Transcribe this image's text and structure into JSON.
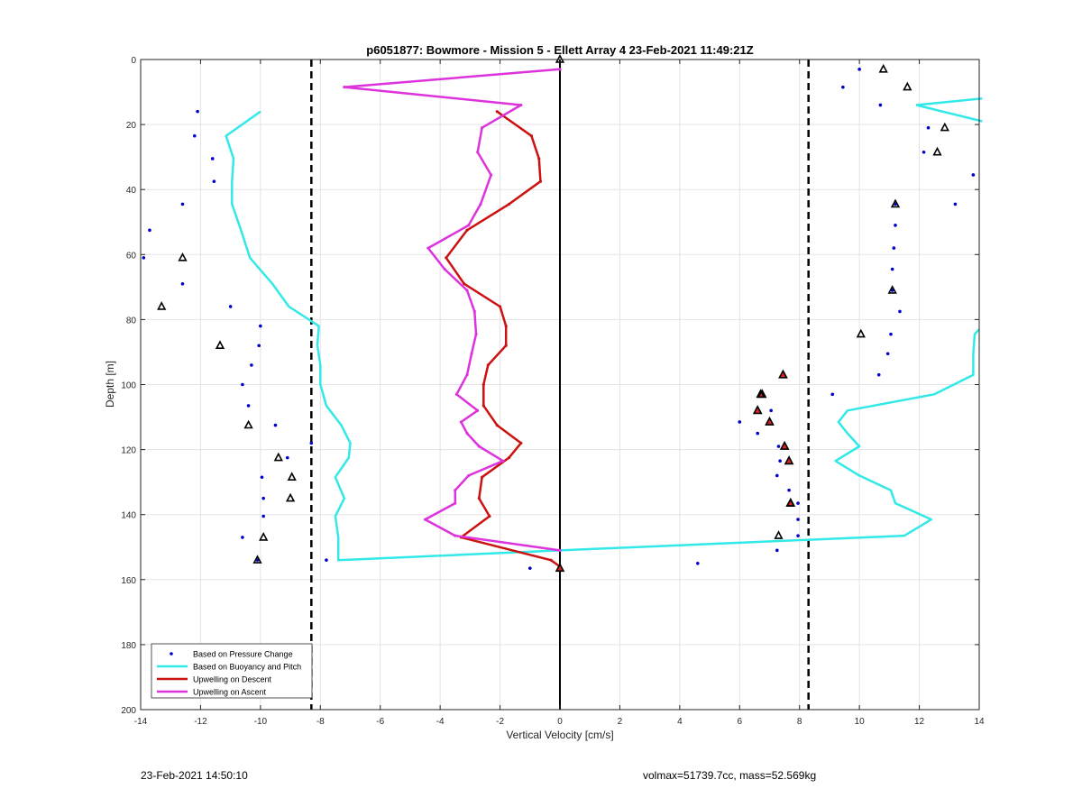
{
  "chart_data": {
    "type": "line",
    "title": "p6051877: Bowmore - Mission 5 - Ellett Array 4 23-Feb-2021 11:49:21Z",
    "xlabel": "Vertical Velocity [cm/s]",
    "ylabel": "Depth [m]",
    "xlim": [
      -14,
      14
    ],
    "ylim": [
      0,
      200
    ],
    "y_reversed": true,
    "grid": true,
    "legend_position": "bottom-left",
    "x_ticks": [
      "-14",
      "-12",
      "-10",
      "-8",
      "-6",
      "-4",
      "-2",
      "0",
      "2",
      "4",
      "6",
      "8",
      "10",
      "12",
      "14"
    ],
    "y_ticks": [
      "0",
      "20",
      "40",
      "60",
      "80",
      "100",
      "120",
      "140",
      "160",
      "180",
      "200"
    ],
    "reference_lines": {
      "zero_x": 0,
      "dashed_x": [
        -8.3,
        8.3
      ]
    },
    "series": [
      {
        "name": "Based on Pressure Change",
        "style": "dots",
        "color": "#0000cc",
        "points": [
          [
            -12.1,
            16
          ],
          [
            -12.2,
            23.5
          ],
          [
            -11.6,
            30.5
          ],
          [
            -11.55,
            37.5
          ],
          [
            -12.6,
            44.5
          ],
          [
            -13.7,
            52.5
          ],
          [
            -13.9,
            61
          ],
          [
            -12.6,
            69
          ],
          [
            -11,
            76
          ],
          [
            -10,
            82
          ],
          [
            -10.05,
            88
          ],
          [
            -10.3,
            94
          ],
          [
            -10.6,
            100
          ],
          [
            -10.4,
            106.5
          ],
          [
            -9.5,
            112.5
          ],
          [
            -8.3,
            118
          ],
          [
            -9.1,
            122.5
          ],
          [
            -9.95,
            128.5
          ],
          [
            -9.9,
            135
          ],
          [
            -9.9,
            140.5
          ],
          [
            -10.6,
            147
          ],
          [
            -10.1,
            154
          ],
          [
            -7.8,
            154
          ],
          [
            -1,
            156.5
          ],
          [
            0,
            156
          ],
          [
            10,
            3
          ],
          [
            9.45,
            8.5
          ],
          [
            10.7,
            14
          ],
          [
            12.3,
            21
          ],
          [
            12.15,
            28.5
          ],
          [
            13.8,
            35.5
          ],
          [
            13.2,
            44.5
          ],
          [
            11.2,
            44.5
          ],
          [
            11.2,
            51
          ],
          [
            11.15,
            58
          ],
          [
            11.1,
            64.5
          ],
          [
            11.1,
            71
          ],
          [
            11.35,
            77.5
          ],
          [
            11.05,
            84.5
          ],
          [
            10.95,
            90.5
          ],
          [
            10.65,
            97
          ],
          [
            9.1,
            103
          ],
          [
            6,
            111.5
          ],
          [
            7.05,
            108
          ],
          [
            6.6,
            115
          ],
          [
            7.3,
            119
          ],
          [
            7.35,
            123.5
          ],
          [
            7.25,
            128
          ],
          [
            7.65,
            132.5
          ],
          [
            7.95,
            136.5
          ],
          [
            7.95,
            141.5
          ],
          [
            7.95,
            146.5
          ],
          [
            7.25,
            151
          ],
          [
            4.6,
            155
          ]
        ]
      },
      {
        "name": "Based on Buoyancy and Pitch",
        "style": "line",
        "color": "#33e8e8",
        "points": [
          [
            -10,
            16
          ],
          [
            -11.15,
            23.5
          ],
          [
            -10.9,
            30.5
          ],
          [
            -10.95,
            37.5
          ],
          [
            -10.95,
            44.5
          ],
          [
            -10.65,
            52.5
          ],
          [
            -10.35,
            61
          ],
          [
            -9.6,
            69
          ],
          [
            -9.05,
            76
          ],
          [
            -8.05,
            82
          ],
          [
            -8.1,
            88
          ],
          [
            -8,
            94
          ],
          [
            -8,
            100
          ],
          [
            -7.8,
            106.5
          ],
          [
            -7.3,
            112.5
          ],
          [
            -7,
            118
          ],
          [
            -7.05,
            122.5
          ],
          [
            -7.5,
            128.5
          ],
          [
            -7.2,
            135
          ],
          [
            -7.5,
            140.5
          ],
          [
            -7.4,
            147
          ],
          [
            -7.4,
            154
          ],
          [
            0,
            151
          ],
          [
            11.5,
            146.5
          ],
          [
            12.4,
            141.5
          ],
          [
            11.2,
            136.5
          ],
          [
            11.05,
            132.5
          ],
          [
            10,
            128
          ],
          [
            9.2,
            123.5
          ],
          [
            10,
            119
          ],
          [
            9.6,
            115
          ],
          [
            9.3,
            111.5
          ],
          [
            9.6,
            108
          ],
          [
            12.5,
            103
          ],
          [
            13.8,
            97
          ],
          [
            13.8,
            90.5
          ],
          [
            13.85,
            84.5
          ],
          [
            14,
            83
          ]
        ],
        "top_right_segment": [
          [
            14.1,
            12
          ],
          [
            11.9,
            14
          ],
          [
            14.1,
            19
          ]
        ]
      },
      {
        "name": "Upwelling on Descent",
        "style": "line",
        "color": "#cc1111",
        "points": [
          [
            -2.1,
            16
          ],
          [
            -0.95,
            23.5
          ],
          [
            -0.7,
            30.5
          ],
          [
            -0.65,
            37.5
          ],
          [
            -1.7,
            44.5
          ],
          [
            -3.1,
            52.5
          ],
          [
            -3.8,
            61
          ],
          [
            -3.2,
            69
          ],
          [
            -2,
            76
          ],
          [
            -1.8,
            82
          ],
          [
            -1.8,
            88
          ],
          [
            -2.4,
            94
          ],
          [
            -2.55,
            100
          ],
          [
            -2.55,
            106.5
          ],
          [
            -2.1,
            112.5
          ],
          [
            -1.3,
            118
          ],
          [
            -1.7,
            122.5
          ],
          [
            -2.6,
            128.5
          ],
          [
            -2.7,
            135
          ],
          [
            -2.35,
            140.5
          ],
          [
            -3.3,
            147
          ],
          [
            -0.3,
            154
          ],
          [
            0,
            156
          ]
        ],
        "triangle_markers": [
          [
            7.45,
            97
          ],
          [
            6.75,
            103
          ],
          [
            6.6,
            108
          ],
          [
            7,
            111.5
          ],
          [
            7.5,
            119
          ],
          [
            7.65,
            123.5
          ],
          [
            7.7,
            136.5
          ],
          [
            0,
            156.5
          ]
        ]
      },
      {
        "name": "Upwelling on Ascent",
        "style": "line",
        "color": "#dd33dd",
        "points": [
          [
            0,
            3
          ],
          [
            -7.2,
            8.5
          ],
          [
            -1.3,
            14
          ],
          [
            -2.6,
            21
          ],
          [
            -2.75,
            28.5
          ],
          [
            -2.3,
            35.5
          ],
          [
            -2.65,
            44.5
          ],
          [
            -3.05,
            51
          ],
          [
            -4.4,
            58
          ],
          [
            -3.85,
            64.5
          ],
          [
            -3.1,
            71
          ],
          [
            -2.85,
            77.5
          ],
          [
            -2.8,
            84.5
          ],
          [
            -2.95,
            90.5
          ],
          [
            -3.1,
            97
          ],
          [
            -3.45,
            103
          ],
          [
            -2.75,
            108
          ],
          [
            -3.3,
            111.5
          ],
          [
            -3.1,
            115
          ],
          [
            -2.7,
            119
          ],
          [
            -1.9,
            123.5
          ],
          [
            -3.05,
            128
          ],
          [
            -3.5,
            132.5
          ],
          [
            -3.5,
            136.5
          ],
          [
            -4.5,
            141.5
          ],
          [
            -3.5,
            146.5
          ],
          [
            0,
            151
          ]
        ]
      },
      {
        "name": "",
        "style": "open-triangles",
        "color": "#000000",
        "points": [
          [
            0,
            0
          ],
          [
            10.8,
            3
          ],
          [
            11.6,
            8.5
          ],
          [
            12.85,
            21
          ],
          [
            12.6,
            28.5
          ],
          [
            11.2,
            44.5
          ],
          [
            11.1,
            71
          ],
          [
            10.05,
            84.5
          ],
          [
            -12.6,
            61
          ],
          [
            -13.3,
            76
          ],
          [
            -11.35,
            88
          ],
          [
            -10.4,
            112.5
          ],
          [
            -9.4,
            122.5
          ],
          [
            -8.95,
            128.5
          ],
          [
            -9,
            135
          ],
          [
            -9.9,
            147
          ],
          [
            -10.1,
            154
          ],
          [
            7.3,
            146.5
          ],
          [
            6.7,
            103
          ],
          [
            7.7,
            136.5
          ]
        ]
      }
    ]
  },
  "footer": {
    "timestamp": "23-Feb-2021 14:50:10",
    "stats": "volmax=51739.7cc, mass=52.569kg"
  }
}
